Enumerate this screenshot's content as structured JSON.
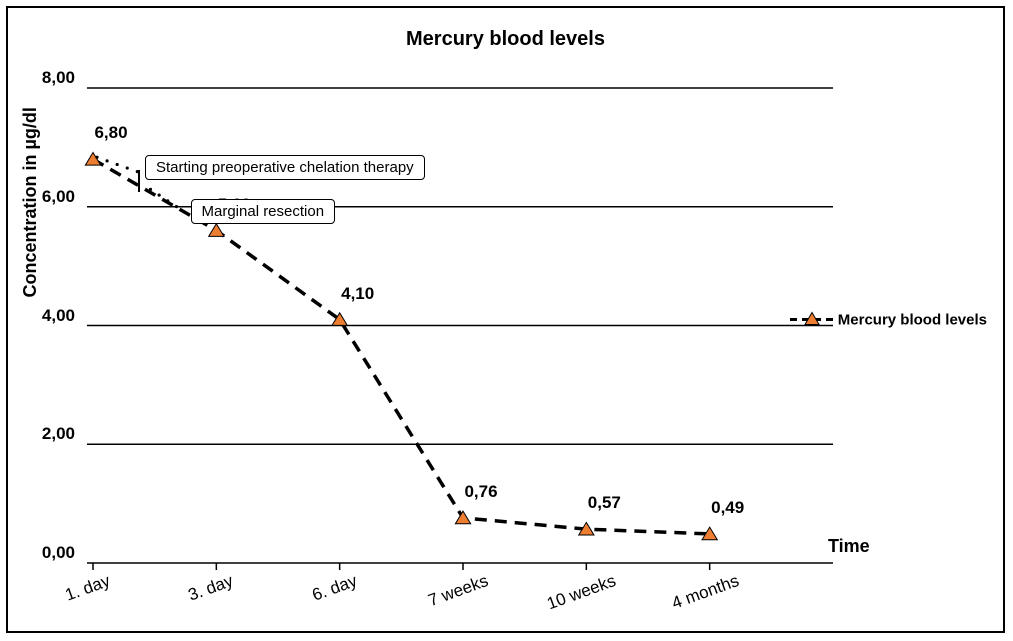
{
  "chart": {
    "type": "line",
    "title": "Mercury blood levels",
    "series_name": "Mercury blood levels",
    "xlabel": "Time",
    "ylabel": "Concentration in µg/dl",
    "categories": [
      "1. day",
      "3. day",
      "6. day",
      "7 weeks",
      "10 weeks",
      "4 months"
    ],
    "values": [
      6.8,
      5.6,
      4.1,
      0.76,
      0.57,
      0.49
    ],
    "value_labels": [
      "6,80",
      "5,60",
      "4,10",
      "0,76",
      "0,57",
      "0,49"
    ],
    "ylim": [
      0,
      8
    ],
    "ytick_step": 2,
    "ytick_labels": [
      "0,00",
      "2,00",
      "4,00",
      "6,00",
      "8,00"
    ],
    "marker_color": "#ed7d31",
    "marker_border_color": "#000000",
    "line_color": "#000000",
    "line_dash": "12,8",
    "line_width": 3.5,
    "grid_color": "#000000",
    "background_color": "#ffffff",
    "tick_fontsize": 17,
    "title_fontsize": 20,
    "label_fontsize": 18,
    "marker_size": 9,
    "annotations": {
      "callout1": "Starting preoperative chelation therapy",
      "callout2": "Marginal resection"
    }
  }
}
